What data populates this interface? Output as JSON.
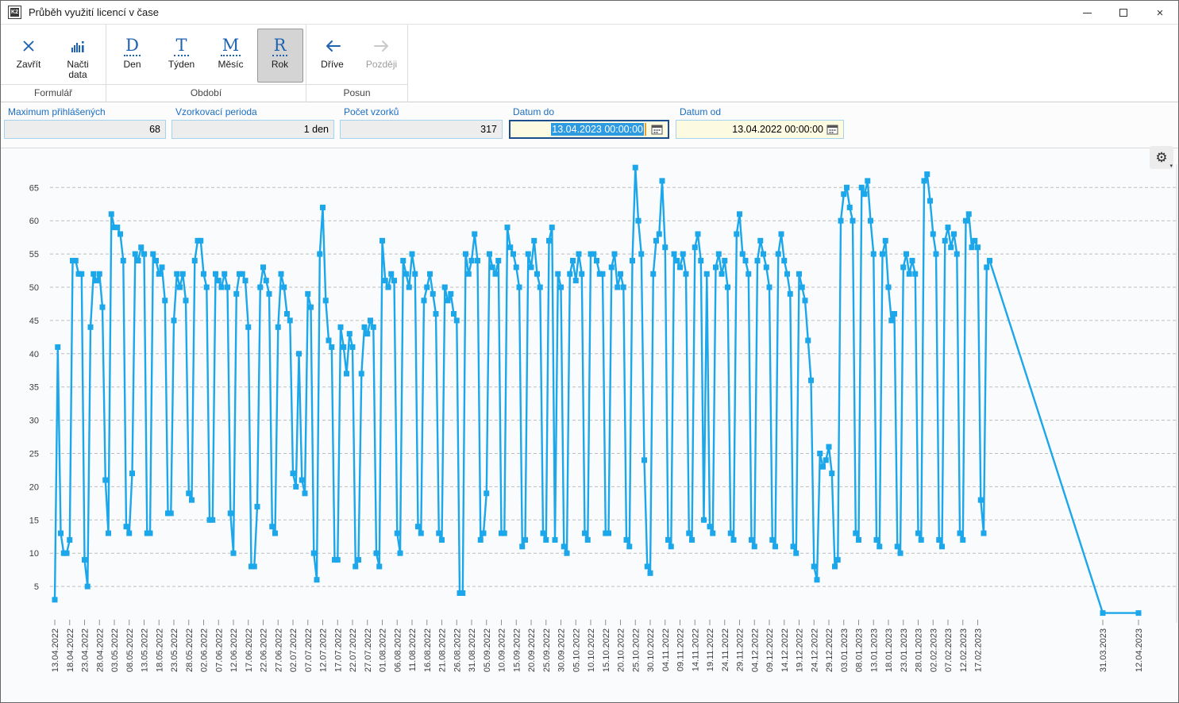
{
  "window": {
    "title": "Průběh využití licencí v čase",
    "icon_text": "K2"
  },
  "icons": {
    "gear": "⚙",
    "gear_caret": "▾",
    "close_window": "×"
  },
  "ribbon": {
    "groups": [
      {
        "label": "Formulář",
        "buttons": [
          {
            "label": "Zavřít",
            "icon": "close-x-icon"
          },
          {
            "label": "Načti data",
            "icon": "bar-chart-icon"
          }
        ]
      },
      {
        "label": "Období",
        "buttons": [
          {
            "label": "Den",
            "icon_letter": "D",
            "selected": false
          },
          {
            "label": "Týden",
            "icon_letter": "T",
            "selected": false
          },
          {
            "label": "Měsíc",
            "icon_letter": "M",
            "selected": false
          },
          {
            "label": "Rok",
            "icon_letter": "R",
            "selected": true
          }
        ]
      },
      {
        "label": "Posun",
        "buttons": [
          {
            "label": "Dříve",
            "icon": "arrow-left-icon",
            "disabled": false
          },
          {
            "label": "Později",
            "icon": "arrow-right-icon",
            "disabled": true
          }
        ]
      }
    ]
  },
  "form": {
    "fields": [
      {
        "label": "Maximum přihlášených",
        "value": "68"
      },
      {
        "label": "Vzorkovací perioda",
        "value": "1 den"
      },
      {
        "label": "Počet vzorků",
        "value": "317"
      },
      {
        "label": "Datum do",
        "value": "13.04.2023 00:00:00",
        "focused": true,
        "text_selected": true
      },
      {
        "label": "Datum od",
        "value": "13.04.2022 00:00:00",
        "focused": false,
        "text_selected": false
      }
    ]
  },
  "chart_data": {
    "type": "line",
    "title": "",
    "xlabel": "",
    "ylabel": "",
    "line_color": "#1BA7E9",
    "grid_color": "#BDBDBD",
    "ylim": [
      0,
      70
    ],
    "y_ticks": [
      5,
      10,
      15,
      20,
      25,
      30,
      35,
      40,
      45,
      50,
      55,
      60,
      65
    ],
    "grid": "dashed-horizontal",
    "legend": "none",
    "x_tick_days": [
      0,
      5,
      10,
      15,
      20,
      25,
      30,
      35,
      40,
      45,
      50,
      55,
      60,
      65,
      70,
      75,
      80,
      85,
      90,
      95,
      100,
      105,
      110,
      115,
      120,
      125,
      130,
      135,
      140,
      145,
      150,
      155,
      160,
      165,
      170,
      175,
      180,
      185,
      190,
      195,
      200,
      205,
      210,
      215,
      220,
      225,
      230,
      235,
      240,
      245,
      250,
      255,
      260,
      265,
      270,
      275,
      280,
      285,
      290,
      295,
      300,
      305,
      310,
      352,
      364
    ],
    "x_tick_labels": [
      "13.04.2022",
      "18.04.2022",
      "23.04.2022",
      "28.04.2022",
      "03.05.2022",
      "08.05.2022",
      "13.05.2022",
      "18.05.2022",
      "23.05.2022",
      "28.05.2022",
      "02.06.2022",
      "07.06.2022",
      "12.06.2022",
      "17.06.2022",
      "22.06.2022",
      "27.06.2022",
      "02.07.2022",
      "07.07.2022",
      "12.07.2022",
      "17.07.2022",
      "22.07.2022",
      "27.07.2022",
      "01.08.2022",
      "06.08.2022",
      "11.08.2022",
      "16.08.2022",
      "21.08.2022",
      "26.08.2022",
      "31.08.2022",
      "05.09.2022",
      "10.09.2022",
      "15.09.2022",
      "20.09.2022",
      "25.09.2022",
      "30.09.2022",
      "05.10.2022",
      "10.10.2022",
      "15.10.2022",
      "20.10.2022",
      "25.10.2022",
      "30.10.2022",
      "04.11.2022",
      "09.11.2022",
      "14.11.2022",
      "19.11.2022",
      "24.11.2022",
      "29.11.2022",
      "04.12.2022",
      "09.12.2022",
      "14.12.2022",
      "19.12.2022",
      "24.12.2022",
      "29.12.2022",
      "03.01.2023",
      "08.01.2023",
      "13.01.2023",
      "18.01.2023",
      "23.01.2023",
      "28.01.2023",
      "02.02.2023",
      "07.02.2023",
      "12.02.2023",
      "17.02.2023",
      "31.03.2023",
      "12.04.2023"
    ],
    "points": [
      [
        0,
        3
      ],
      [
        1,
        41
      ],
      [
        2,
        13
      ],
      [
        3,
        10
      ],
      [
        4,
        10
      ],
      [
        5,
        12
      ],
      [
        6,
        54
      ],
      [
        7,
        54
      ],
      [
        8,
        52
      ],
      [
        9,
        52
      ],
      [
        10,
        9
      ],
      [
        11,
        5
      ],
      [
        12,
        44
      ],
      [
        13,
        52
      ],
      [
        14,
        51
      ],
      [
        15,
        52
      ],
      [
        16,
        47
      ],
      [
        17,
        21
      ],
      [
        18,
        13
      ],
      [
        19,
        61
      ],
      [
        20,
        59
      ],
      [
        21,
        59
      ],
      [
        22,
        58
      ],
      [
        23,
        54
      ],
      [
        24,
        14
      ],
      [
        25,
        13
      ],
      [
        26,
        22
      ],
      [
        27,
        55
      ],
      [
        28,
        54
      ],
      [
        29,
        56
      ],
      [
        30,
        55
      ],
      [
        31,
        13
      ],
      [
        32,
        13
      ],
      [
        33,
        55
      ],
      [
        34,
        54
      ],
      [
        35,
        52
      ],
      [
        36,
        53
      ],
      [
        37,
        48
      ],
      [
        38,
        16
      ],
      [
        39,
        16
      ],
      [
        40,
        45
      ],
      [
        41,
        52
      ],
      [
        42,
        50
      ],
      [
        43,
        52
      ],
      [
        44,
        48
      ],
      [
        45,
        19
      ],
      [
        46,
        18
      ],
      [
        47,
        54
      ],
      [
        48,
        57
      ],
      [
        49,
        57
      ],
      [
        50,
        52
      ],
      [
        51,
        50
      ],
      [
        52,
        15
      ],
      [
        53,
        15
      ],
      [
        54,
        52
      ],
      [
        55,
        51
      ],
      [
        56,
        50
      ],
      [
        57,
        52
      ],
      [
        58,
        50
      ],
      [
        59,
        16
      ],
      [
        60,
        10
      ],
      [
        61,
        49
      ],
      [
        62,
        52
      ],
      [
        63,
        52
      ],
      [
        64,
        51
      ],
      [
        65,
        44
      ],
      [
        66,
        8
      ],
      [
        67,
        8
      ],
      [
        68,
        17
      ],
      [
        69,
        50
      ],
      [
        70,
        53
      ],
      [
        71,
        51
      ],
      [
        72,
        49
      ],
      [
        73,
        14
      ],
      [
        74,
        13
      ],
      [
        75,
        44
      ],
      [
        76,
        52
      ],
      [
        77,
        50
      ],
      [
        78,
        46
      ],
      [
        79,
        45
      ],
      [
        80,
        22
      ],
      [
        81,
        20
      ],
      [
        82,
        40
      ],
      [
        83,
        21
      ],
      [
        84,
        19
      ],
      [
        85,
        49
      ],
      [
        86,
        47
      ],
      [
        87,
        10
      ],
      [
        88,
        6
      ],
      [
        89,
        55
      ],
      [
        90,
        62
      ],
      [
        91,
        48
      ],
      [
        92,
        42
      ],
      [
        93,
        41
      ],
      [
        94,
        9
      ],
      [
        95,
        9
      ],
      [
        96,
        44
      ],
      [
        97,
        41
      ],
      [
        98,
        37
      ],
      [
        99,
        43
      ],
      [
        100,
        41
      ],
      [
        101,
        8
      ],
      [
        102,
        9
      ],
      [
        103,
        37
      ],
      [
        104,
        44
      ],
      [
        105,
        43
      ],
      [
        106,
        45
      ],
      [
        107,
        44
      ],
      [
        108,
        10
      ],
      [
        109,
        8
      ],
      [
        110,
        57
      ],
      [
        111,
        51
      ],
      [
        112,
        50
      ],
      [
        113,
        52
      ],
      [
        114,
        51
      ],
      [
        115,
        13
      ],
      [
        116,
        10
      ],
      [
        117,
        54
      ],
      [
        118,
        52
      ],
      [
        119,
        50
      ],
      [
        120,
        55
      ],
      [
        121,
        52
      ],
      [
        122,
        14
      ],
      [
        123,
        13
      ],
      [
        124,
        48
      ],
      [
        125,
        50
      ],
      [
        126,
        52
      ],
      [
        127,
        49
      ],
      [
        128,
        46
      ],
      [
        129,
        13
      ],
      [
        130,
        12
      ],
      [
        131,
        50
      ],
      [
        132,
        48
      ],
      [
        133,
        49
      ],
      [
        134,
        46
      ],
      [
        135,
        45
      ],
      [
        136,
        4
      ],
      [
        137,
        4
      ],
      [
        138,
        55
      ],
      [
        139,
        52
      ],
      [
        140,
        54
      ],
      [
        141,
        58
      ],
      [
        142,
        54
      ],
      [
        143,
        12
      ],
      [
        144,
        13
      ],
      [
        145,
        19
      ],
      [
        146,
        55
      ],
      [
        147,
        53
      ],
      [
        148,
        52
      ],
      [
        149,
        54
      ],
      [
        150,
        13
      ],
      [
        151,
        13
      ],
      [
        152,
        59
      ],
      [
        153,
        56
      ],
      [
        154,
        55
      ],
      [
        155,
        53
      ],
      [
        156,
        50
      ],
      [
        157,
        11
      ],
      [
        158,
        12
      ],
      [
        159,
        55
      ],
      [
        160,
        53
      ],
      [
        161,
        57
      ],
      [
        162,
        52
      ],
      [
        163,
        50
      ],
      [
        164,
        13
      ],
      [
        165,
        12
      ],
      [
        166,
        57
      ],
      [
        167,
        59
      ],
      [
        168,
        12
      ],
      [
        169,
        52
      ],
      [
        170,
        50
      ],
      [
        171,
        11
      ],
      [
        172,
        10
      ],
      [
        173,
        52
      ],
      [
        174,
        54
      ],
      [
        175,
        51
      ],
      [
        176,
        55
      ],
      [
        177,
        52
      ],
      [
        178,
        13
      ],
      [
        179,
        12
      ],
      [
        180,
        55
      ],
      [
        181,
        55
      ],
      [
        182,
        54
      ],
      [
        183,
        52
      ],
      [
        184,
        52
      ],
      [
        185,
        13
      ],
      [
        186,
        13
      ],
      [
        187,
        53
      ],
      [
        188,
        55
      ],
      [
        189,
        50
      ],
      [
        190,
        52
      ],
      [
        191,
        50
      ],
      [
        192,
        12
      ],
      [
        193,
        11
      ],
      [
        194,
        54
      ],
      [
        195,
        68
      ],
      [
        196,
        60
      ],
      [
        197,
        55
      ],
      [
        198,
        24
      ],
      [
        199,
        8
      ],
      [
        200,
        7
      ],
      [
        201,
        52
      ],
      [
        202,
        57
      ],
      [
        203,
        58
      ],
      [
        204,
        66
      ],
      [
        205,
        56
      ],
      [
        206,
        12
      ],
      [
        207,
        11
      ],
      [
        208,
        55
      ],
      [
        209,
        54
      ],
      [
        210,
        53
      ],
      [
        211,
        55
      ],
      [
        212,
        52
      ],
      [
        213,
        13
      ],
      [
        214,
        12
      ],
      [
        215,
        56
      ],
      [
        216,
        58
      ],
      [
        217,
        54
      ],
      [
        218,
        15
      ],
      [
        219,
        52
      ],
      [
        220,
        14
      ],
      [
        221,
        13
      ],
      [
        222,
        53
      ],
      [
        223,
        55
      ],
      [
        224,
        52
      ],
      [
        225,
        54
      ],
      [
        226,
        50
      ],
      [
        227,
        13
      ],
      [
        228,
        12
      ],
      [
        229,
        58
      ],
      [
        230,
        61
      ],
      [
        231,
        55
      ],
      [
        232,
        54
      ],
      [
        233,
        52
      ],
      [
        234,
        12
      ],
      [
        235,
        11
      ],
      [
        236,
        54
      ],
      [
        237,
        57
      ],
      [
        238,
        55
      ],
      [
        239,
        53
      ],
      [
        240,
        50
      ],
      [
        241,
        12
      ],
      [
        242,
        11
      ],
      [
        243,
        55
      ],
      [
        244,
        58
      ],
      [
        245,
        54
      ],
      [
        246,
        52
      ],
      [
        247,
        49
      ],
      [
        248,
        11
      ],
      [
        249,
        10
      ],
      [
        250,
        52
      ],
      [
        251,
        50
      ],
      [
        252,
        48
      ],
      [
        253,
        42
      ],
      [
        254,
        36
      ],
      [
        255,
        8
      ],
      [
        256,
        6
      ],
      [
        257,
        25
      ],
      [
        258,
        23
      ],
      [
        259,
        24
      ],
      [
        260,
        26
      ],
      [
        261,
        22
      ],
      [
        262,
        8
      ],
      [
        263,
        9
      ],
      [
        264,
        60
      ],
      [
        265,
        64
      ],
      [
        266,
        65
      ],
      [
        267,
        62
      ],
      [
        268,
        60
      ],
      [
        269,
        13
      ],
      [
        270,
        12
      ],
      [
        271,
        65
      ],
      [
        272,
        64
      ],
      [
        273,
        66
      ],
      [
        274,
        60
      ],
      [
        275,
        55
      ],
      [
        276,
        12
      ],
      [
        277,
        11
      ],
      [
        278,
        55
      ],
      [
        279,
        57
      ],
      [
        280,
        50
      ],
      [
        281,
        45
      ],
      [
        282,
        46
      ],
      [
        283,
        11
      ],
      [
        284,
        10
      ],
      [
        285,
        53
      ],
      [
        286,
        55
      ],
      [
        287,
        52
      ],
      [
        288,
        54
      ],
      [
        289,
        52
      ],
      [
        290,
        13
      ],
      [
        291,
        12
      ],
      [
        292,
        66
      ],
      [
        293,
        67
      ],
      [
        294,
        63
      ],
      [
        295,
        58
      ],
      [
        296,
        55
      ],
      [
        297,
        12
      ],
      [
        298,
        11
      ],
      [
        299,
        57
      ],
      [
        300,
        59
      ],
      [
        301,
        56
      ],
      [
        302,
        58
      ],
      [
        303,
        55
      ],
      [
        304,
        13
      ],
      [
        305,
        12
      ],
      [
        306,
        60
      ],
      [
        307,
        61
      ],
      [
        308,
        56
      ],
      [
        309,
        57
      ],
      [
        310,
        56
      ],
      [
        311,
        18
      ],
      [
        312,
        13
      ],
      [
        313,
        53
      ],
      [
        314,
        54
      ],
      [
        352,
        1
      ],
      [
        364,
        1
      ]
    ]
  }
}
